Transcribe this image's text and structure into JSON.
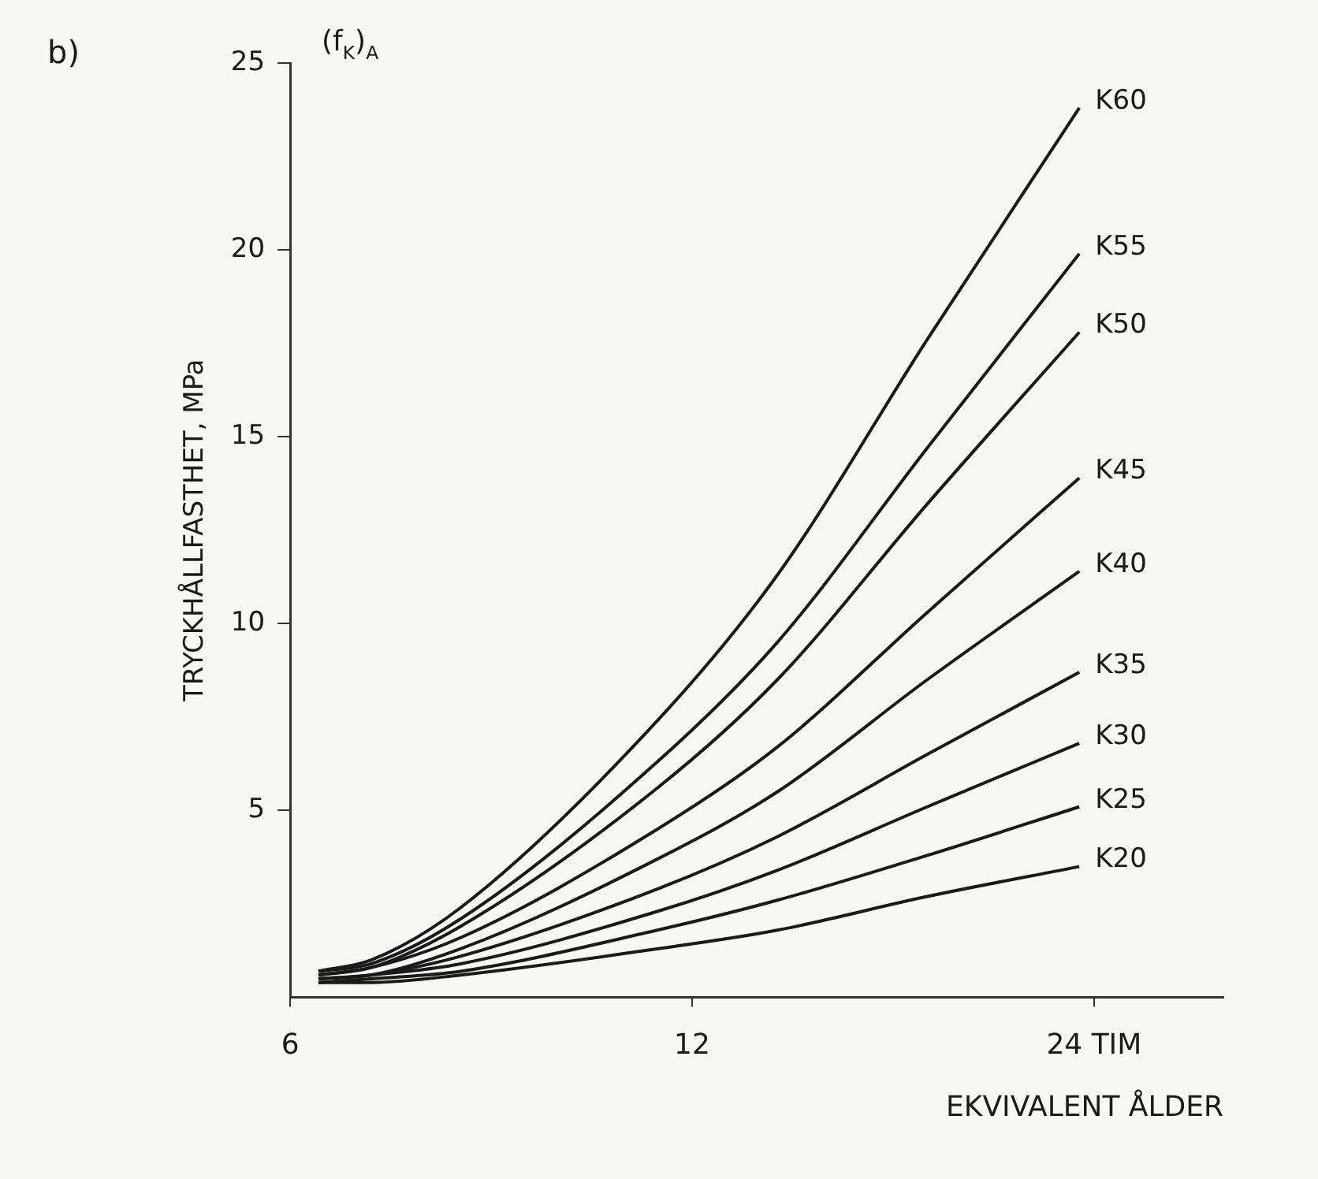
{
  "chart_data": {
    "type": "line",
    "xlabel": "EKVIVALENT ÅLDER",
    "ylabel": "TRYCKHÅLLFASTHET, MPa",
    "annotations": [
      "b)",
      "(f$_{K}$)$_{A}$"
    ],
    "x": [
      6.3,
      6.9,
      8.05,
      11.3,
      13.9,
      18,
      23.4
    ],
    "series": [
      {
        "name": "K60",
        "color": "#1a1a1a",
        "values": [
          0.7,
          1.0,
          2.4,
          7.4,
          11.3,
          17.6,
          23.8
        ]
      },
      {
        "name": "K55",
        "color": "#1a1a1a",
        "values": [
          0.7,
          0.9,
          2.1,
          6.3,
          9.5,
          14.7,
          19.9
        ]
      },
      {
        "name": "K50",
        "color": "#1a1a1a",
        "values": [
          0.6,
          0.8,
          1.9,
          5.6,
          8.5,
          13.2,
          17.8
        ]
      },
      {
        "name": "K45",
        "color": "#1a1a1a",
        "values": [
          0.6,
          0.8,
          1.6,
          4.5,
          6.7,
          10.3,
          13.9
        ]
      },
      {
        "name": "K40",
        "color": "#1a1a1a",
        "values": [
          0.5,
          0.6,
          1.3,
          3.7,
          5.5,
          8.5,
          11.4
        ]
      },
      {
        "name": "K35",
        "color": "#1a1a1a",
        "values": [
          0.5,
          0.6,
          1.1,
          2.9,
          4.3,
          6.5,
          8.7
        ]
      },
      {
        "name": "K30",
        "color": "#1a1a1a",
        "values": [
          0.5,
          0.6,
          0.9,
          2.3,
          3.4,
          5.1,
          6.8
        ]
      },
      {
        "name": "K25",
        "color": "#1a1a1a",
        "values": [
          0.4,
          0.5,
          0.7,
          1.8,
          2.6,
          3.8,
          5.1
        ]
      },
      {
        "name": "K20",
        "color": "#1a1a1a",
        "values": [
          0.4,
          0.4,
          0.6,
          1.3,
          1.8,
          2.7,
          3.5
        ]
      }
    ],
    "log": "x",
    "xlim": [
      6,
      30
    ],
    "xticks": [
      6,
      12,
      {
        "value": 24,
        "label": "24 TIM"
      }
    ],
    "ylim": [
      0,
      25
    ],
    "yticks": [
      5,
      10,
      15,
      20,
      25
    ],
    "grid": false,
    "legend": false
  }
}
